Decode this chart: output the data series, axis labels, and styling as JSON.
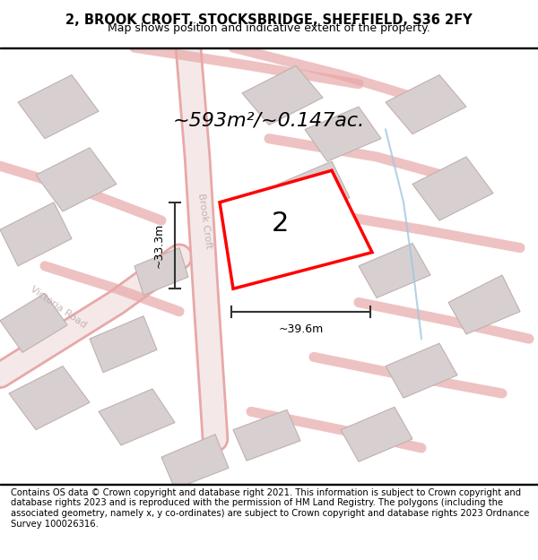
{
  "title_line1": "2, BROOK CROFT, STOCKSBRIDGE, SHEFFIELD, S36 2FY",
  "title_line2": "Map shows position and indicative extent of the property.",
  "area_text": "~593m²/~0.147ac.",
  "label_number": "2",
  "dim_vertical": "~33.3m",
  "dim_horizontal": "~39.6m",
  "street_label": "Brook Croft",
  "road_label": "Victoria Road",
  "footer_text": "Contains OS data © Crown copyright and database right 2021. This information is subject to Crown copyright and database rights 2023 and is reproduced with the permission of HM Land Registry. The polygons (including the associated geometry, namely x, y co-ordinates) are subject to Crown copyright and database rights 2023 Ordnance Survey 100026316.",
  "bg_color": "#f5f0f0",
  "map_bg": "#ffffff",
  "red_outline_color": "#ff0000",
  "gray_building_color": "#d8d0d0",
  "road_pink": "#f0b8b8",
  "title_bg": "#ffffff",
  "footer_bg": "#ffffff"
}
